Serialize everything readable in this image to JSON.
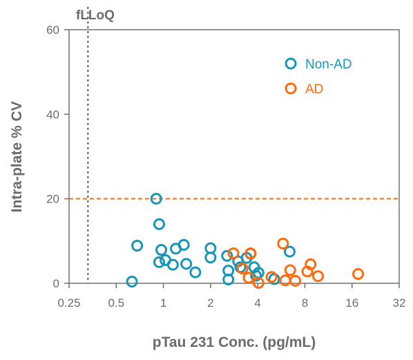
{
  "chart_data": {
    "type": "scatter",
    "title": "",
    "xlabel": "pTau 231 Conc. (pg/mL)",
    "ylabel": "Intra-plate % CV",
    "xscale": "log2",
    "xlim": [
      0.25,
      32
    ],
    "ylim": [
      0,
      60
    ],
    "xticks": [
      0.25,
      0.5,
      1,
      2,
      4,
      8,
      16,
      32
    ],
    "xtick_labels": [
      "0.25",
      "0.5",
      "1",
      "2",
      "4",
      "8",
      "16",
      "32"
    ],
    "yticks": [
      0,
      20,
      40,
      60
    ],
    "ytick_labels": [
      "0",
      "20",
      "40",
      "60"
    ],
    "grid": false,
    "legend_position": "top-right",
    "reference_lines": [
      {
        "axis": "x",
        "value": 0.33,
        "label": "fLLoQ",
        "style": "dotted",
        "color": "#555555"
      },
      {
        "axis": "y",
        "value": 20,
        "label": "",
        "style": "dashed",
        "color": "#ff6a0d"
      }
    ],
    "series": [
      {
        "name": "Non-AD",
        "color": "#1795b8",
        "marker": "open-circle",
        "points": [
          [
            0.63,
            0.4
          ],
          [
            0.68,
            8.9
          ],
          [
            0.9,
            20.0
          ],
          [
            0.94,
            14.0
          ],
          [
            0.97,
            7.9
          ],
          [
            0.94,
            5.0
          ],
          [
            1.03,
            5.5
          ],
          [
            1.15,
            4.4
          ],
          [
            1.2,
            8.2
          ],
          [
            1.35,
            9.1
          ],
          [
            1.4,
            4.6
          ],
          [
            1.6,
            2.6
          ],
          [
            2.0,
            8.3
          ],
          [
            2.0,
            6.1
          ],
          [
            2.55,
            6.5
          ],
          [
            2.6,
            3.0
          ],
          [
            2.6,
            0.9
          ],
          [
            3.0,
            5.2
          ],
          [
            3.1,
            3.8
          ],
          [
            3.4,
            6.0
          ],
          [
            3.6,
            7.0
          ],
          [
            3.8,
            3.8
          ],
          [
            3.9,
            1.8
          ],
          [
            4.05,
            2.5
          ],
          [
            5.1,
            1.0
          ],
          [
            6.4,
            7.5
          ]
        ]
      },
      {
        "name": "AD",
        "color": "#ff6a0d",
        "marker": "open-circle",
        "points": [
          [
            2.8,
            7.1
          ],
          [
            3.2,
            3.5
          ],
          [
            3.5,
            1.3
          ],
          [
            3.6,
            7.1
          ],
          [
            4.05,
            0.1
          ],
          [
            4.9,
            1.5
          ],
          [
            5.8,
            9.4
          ],
          [
            6.0,
            0.7
          ],
          [
            6.45,
            3.1
          ],
          [
            6.95,
            0.6
          ],
          [
            8.3,
            2.8
          ],
          [
            8.7,
            4.5
          ],
          [
            9.7,
            1.7
          ],
          [
            17.5,
            2.2
          ]
        ]
      }
    ]
  }
}
